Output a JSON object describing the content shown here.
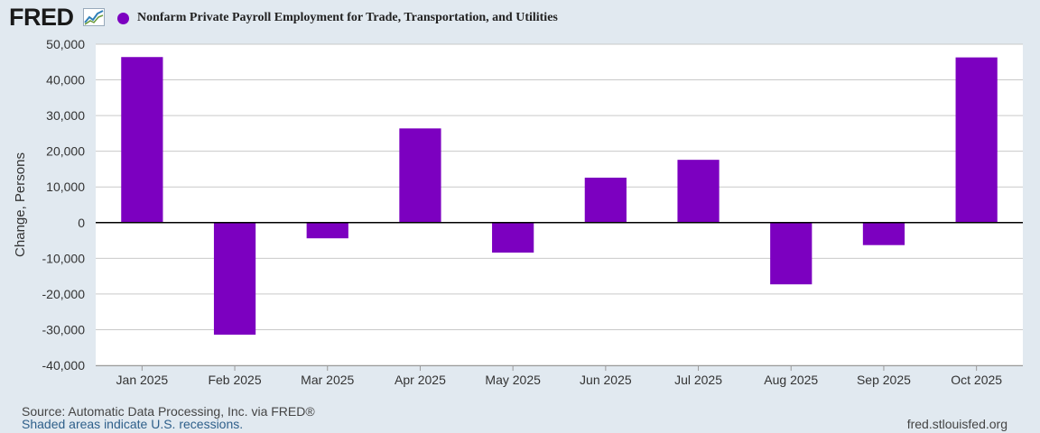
{
  "header": {
    "logo_text": "FRED",
    "logo_icon": "line-chart-icon",
    "legend_label": "Nonfarm Private Payroll Employment for Trade, Transportation, and Utilities"
  },
  "colors": {
    "series": "#7c00c0",
    "background": "#e1e9f0",
    "plot_background": "#ffffff",
    "grid": "#c9c9c9"
  },
  "chart_data": {
    "type": "bar",
    "categories": [
      "Jan 2025",
      "Feb 2025",
      "Mar 2025",
      "Apr 2025",
      "May 2025",
      "Jun 2025",
      "Jul 2025",
      "Aug 2025",
      "Sep 2025",
      "Oct 2025"
    ],
    "series": [
      {
        "name": "Nonfarm Private Payroll Employment for Trade, Transportation, and Utilities",
        "values": [
          46400,
          -31400,
          -4400,
          26400,
          -8400,
          12600,
          17600,
          -17300,
          -6300,
          46300
        ]
      }
    ],
    "ylabel": "Change, Persons",
    "ylim": [
      -40000,
      50000
    ],
    "yticks": [
      {
        "value": 50000,
        "label": "50,000"
      },
      {
        "value": 40000,
        "label": "40,000"
      },
      {
        "value": 30000,
        "label": "30,000"
      },
      {
        "value": 20000,
        "label": "20,000"
      },
      {
        "value": 10000,
        "label": "10,000"
      },
      {
        "value": 0,
        "label": "0"
      },
      {
        "value": -10000,
        "label": "-10,000"
      },
      {
        "value": -20000,
        "label": "-20,000"
      },
      {
        "value": -30000,
        "label": "-30,000"
      },
      {
        "value": -40000,
        "label": "-40,000"
      }
    ],
    "grid": true
  },
  "footer": {
    "source": "Source: Automatic Data Processing, Inc. via FRED®",
    "recession_note": "Shaded areas indicate U.S. recessions.",
    "url": "fred.stlouisfed.org"
  }
}
